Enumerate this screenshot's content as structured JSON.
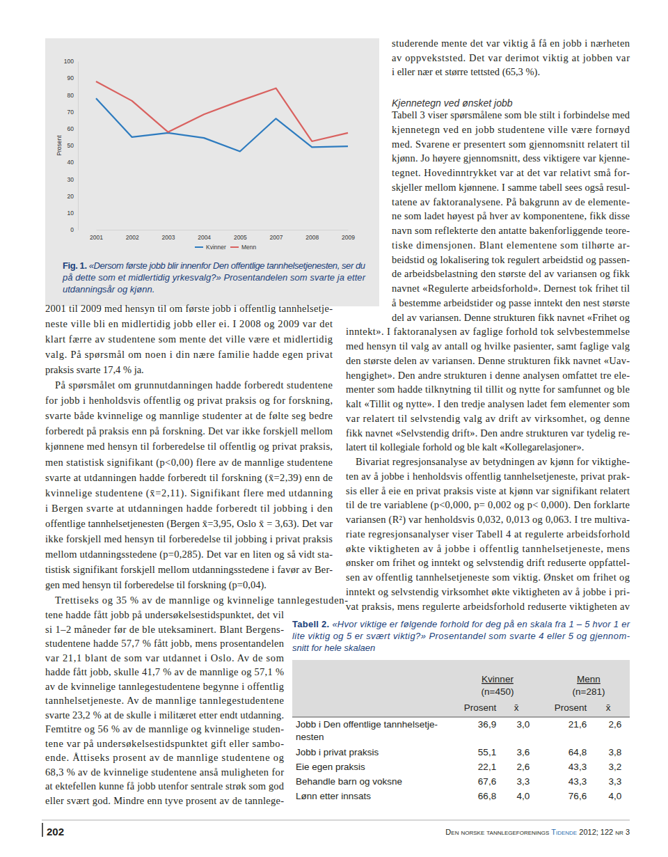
{
  "chart_data": {
    "type": "line",
    "categories": [
      "2001",
      "2002",
      "2003",
      "2004",
      "2005",
      "2007",
      "2008",
      "2009"
    ],
    "series": [
      {
        "name": "Kvinner",
        "color": "#2d7bbf",
        "values": [
          78,
          55,
          57.5,
          54.5,
          46.5,
          66,
          49,
          49.5
        ]
      },
      {
        "name": "Menn",
        "color": "#d9615f",
        "values": [
          88,
          76.5,
          58,
          68.5,
          76.5,
          84,
          52.5,
          57.5
        ]
      }
    ],
    "ylabel": "Prosent",
    "ylim": [
      0,
      100
    ],
    "yticks": [
      0,
      10,
      20,
      30,
      40,
      50,
      60,
      70,
      80,
      90,
      100
    ],
    "grid": false,
    "legend": "bottom"
  },
  "figure_caption": {
    "label": "Fig. 1.",
    "lines": [
      "«Dersom første jobb blir innenfor Den offentlige tannhelsetjenesten, ser du",
      "på dette som et midlertidig yrkesvalg?» Prosentandelen som svarte ja etter",
      "utdanningsår og kjønn."
    ]
  },
  "page": {
    "left_column": {
      "paragraphs": [
        {
          "lines": [
            "2001 til 2009 med hensyn til om første jobb i offentlig tannhelsetje-",
            "neste ville bli en midlertidig jobb eller ei. I 2008 og 2009 var det",
            "klart færre av studentene som mente det ville være et midlertidig",
            "valg. På spørsmål om noen i din nære familie hadde egen privat",
            "praksis svarte 17,4 % ja."
          ]
        },
        {
          "lines": [
            "På spørsmålet om grunnutdanningen hadde forberedt studentene",
            "for jobb i henholdsvis offentlig og privat praksis og for forskning,",
            "svarte både kvinnelige og mannlige studenter at de følte seg bedre",
            "forberedt på praksis enn på forskning. Det var ikke forskjell mellom",
            "kjønnene med hensyn til forberedelse til offentlig og privat praksis,",
            "men statistisk signifikant (p<0,00) flere av de mannlige studentene",
            "svarte at utdanningen hadde forberedt til forskning (x̄=2,39) enn de",
            "kvinnelige studentene (x̄=2,11). Signifikant flere med utdanning",
            "i Bergen svarte at utdanningen hadde forberedt til jobbing i den",
            "offentlige tannhelsetjenesten (Bergen x̄=3,95, Oslo x̄ = 3,63). Det var",
            "ikke forskjell med hensyn til forberedelse til jobbing i privat praksis",
            "mellom utdanningsstedene (p=0,285). Det var en liten og så vidt sta-",
            "tistisk signifikant forskjell mellom utdanningsstedene i favør av Ber-",
            "gen med hensyn til forberedelse til forskning (p=0,04)."
          ]
        },
        {
          "lines": [
            "Trettiseks og 35 % av de mannlige og kvinnelige tannlegestuden-",
            "tene hadde fått jobb på undersøkelsestidspunktet, det vil",
            "si 1–2 måneder før de ble uteksaminert. Blant Bergens-",
            "studentene hadde 57,7 % fått jobb, mens prosentandelen",
            "var 21,1 blant de som var utdannet i Oslo. Av de som",
            "hadde fått jobb, skulle 41,7 % av de mannlige og 57,1 %",
            "av de kvinnelige tannlegestudentene begynne i offentlig",
            "tannhelsetjeneste. Av de mannlige tannlegestudentene",
            "svarte 23,2 % at de skulle i militæret etter endt utdanning.",
            "Femtitre og 56 % av de mannlige og kvinnelige studen-",
            "tene var på undersøkelsestidspunktet gift eller sambo-",
            "ende. Åttiseks prosent av de mannlige studentene og",
            "68,3 % av de kvinnelige studentene anså muligheten for",
            "at ektefellen kunne få jobb utenfor sentrale strøk som god",
            "eller svært god. Mindre enn tyve prosent av de tannlege-"
          ]
        }
      ]
    },
    "right_column": {
      "intro": {
        "lines": [
          "studerende mente det var viktig å få en jobb i nærheten",
          "av oppvekststed. Det var derimot viktig at jobben var",
          "i eller nær et større tettsted (65,3 %)."
        ]
      },
      "heading": "Kjennetegn ved ønsket jobb",
      "paragraphs": [
        {
          "lines": [
            "Tabell 3 viser spørsmålene som ble stilt i forbindelse med",
            "kjennetegn ved en jobb studentene ville være fornøyd",
            "med. Svarene er presentert som gjennomsnitt relatert til",
            "kjønn. Jo høyere gjennomsnitt, dess viktigere var kjenne-",
            "tegnet. Hovedinntrykket var at det var relativt små for-",
            "skjeller mellom kjønnene. I samme tabell sees også resul-",
            "tatene av faktoranalysene. På bakgrunn av de elemente-",
            "ne som ladet høyest på hver av komponentene, fikk disse",
            "navn som reflekterte den antatte bakenforliggende teore-",
            "tiske dimensjonen. Blant elementene som tilhørte ar-",
            "beidstid og lokalisering tok regulert arbeidstid og passen-",
            "de arbeidsbelastning den største del av variansen og fikk",
            "navnet «Regulerte arbeidsforhold». Dernest tok frihet til",
            "å bestemme arbeidstider og passe inntekt den nest største",
            "del av variansen. Denne strukturen fikk navnet «Frihet og",
            "inntekt». I faktoranalysen av faglige forhold tok selvbestemmelse",
            "med hensyn til valg av antall og hvilke pasienter, samt faglige valg",
            "den største delen av variansen. Denne strukturen fikk navnet «Uav-",
            "hengighet». Den andre strukturen i denne analysen omfattet tre ele-",
            "menter som hadde tilknytning til tillit og nytte for samfunnet og ble",
            "kalt «Tillit og nytte». I den tredje analysen ladet fem elementer som",
            "var relatert til selvstendig valg av drift av virksomhet, og denne",
            "fikk navnet «Selvstendig drift». Den andre strukturen var tydelig re-",
            "latert til kollegiale forhold og ble kalt «Kollegarelasjoner»."
          ]
        },
        {
          "lines": [
            "Bivariat regresjonsanalyse av betydningen av kjønn for viktighe-",
            "ten av å jobbe i henholdsvis offentlig tannhelsetjeneste, privat prak-",
            "sis eller å eie en privat praksis viste at kjønn var signifikant relatert",
            "til de tre variablene (p<0,000, p= 0,002 og p< 0,000). Den forklarte",
            "variansen (R²) var henholdsvis 0,032, 0,013 og 0,063. I tre multiva-",
            "riate regresjonsanalyser viser Tabell 4 at regulerte arbeidsforhold",
            "økte viktigheten av å jobbe i offentlig tannhelsetjeneste, mens",
            "ønsker om frihet og inntekt og selvstendig drift reduserte oppfattel-",
            "sen av offentlig tannhelsetjeneste som viktig. Ønsket om frihet og",
            "inntekt og selvstendig virksomhet økte viktigheten av å jobbe i pri-",
            "vat praksis, mens regulerte arbeidsforhold reduserte viktigheten av"
          ]
        }
      ]
    },
    "table": {
      "caption": {
        "label": "Tabell 2.",
        "lines": [
          "«Hvor viktige er følgende forhold for deg på en skala fra 1 – 5 hvor 1 er",
          "lite viktig og 5 er svært viktig?» Prosentandel som svarte 4 eller 5 og gjennom-",
          "snitt for hele skalaen"
        ]
      },
      "groups": [
        {
          "name": "Kvinner",
          "n": "(n=450)"
        },
        {
          "name": "Menn",
          "n": "(n=281)"
        }
      ],
      "subheaders": [
        "Prosent",
        "x̄",
        "Prosent",
        "x̄"
      ],
      "rows": [
        {
          "label_lines": [
            "Jobb i Den offentlige tannhelsetje-",
            "nesten"
          ],
          "cells": [
            "36,9",
            "3,0",
            "21,6",
            "2,6"
          ]
        },
        {
          "label_lines": [
            "Jobb i privat praksis"
          ],
          "cells": [
            "55,1",
            "3,6",
            "64,8",
            "3,8"
          ]
        },
        {
          "label_lines": [
            "Eie egen praksis"
          ],
          "cells": [
            "22,1",
            "2,6",
            "43,3",
            "3,2"
          ]
        },
        {
          "label_lines": [
            "Behandle barn og voksne"
          ],
          "cells": [
            "67,6",
            "3,3",
            "43,3",
            "3,3"
          ]
        },
        {
          "label_lines": [
            "Lønn etter innsats"
          ],
          "cells": [
            "66,8",
            "4,0",
            "76,6",
            "4,0"
          ]
        }
      ]
    },
    "footer": {
      "page_number": "202",
      "journal": [
        "Den norske tannlegeforenings",
        "Tidende",
        "2012; 122 nr 3"
      ]
    }
  }
}
